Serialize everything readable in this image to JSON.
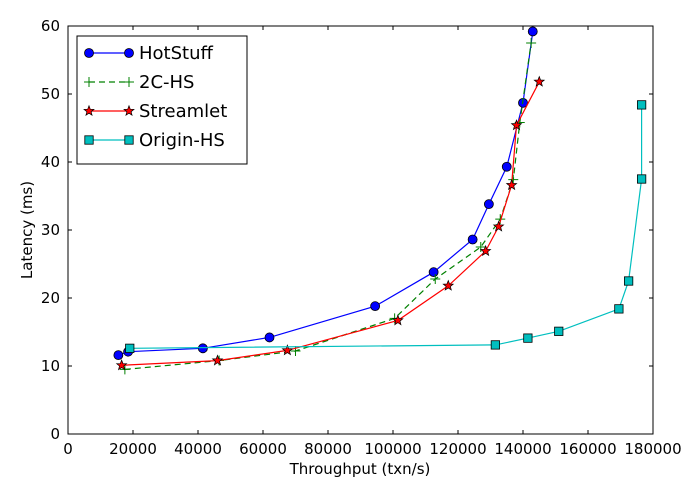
{
  "chart_data": {
    "type": "line",
    "xlabel": "Throughput (txn/s)",
    "ylabel": "Latency (ms)",
    "xlim": [
      0,
      180000
    ],
    "ylim": [
      0,
      60
    ],
    "xticks": [
      "0",
      "20000",
      "40000",
      "60000",
      "80000",
      "100000",
      "120000",
      "140000",
      "160000",
      "180000"
    ],
    "yticks": [
      "0",
      "10",
      "20",
      "30",
      "40",
      "50",
      "60"
    ],
    "grid": false,
    "legend_position": "top-left",
    "series": [
      {
        "name": "HotStuff",
        "color": "#0000ff",
        "marker": "circle",
        "line_style": "solid",
        "points": [
          [
            15500,
            11.6
          ],
          [
            18500,
            12.1
          ],
          [
            41500,
            12.6
          ],
          [
            62000,
            14.2
          ],
          [
            94500,
            18.8
          ],
          [
            112500,
            23.8
          ],
          [
            124500,
            28.6
          ],
          [
            129500,
            33.8
          ],
          [
            135000,
            39.3
          ],
          [
            140000,
            48.7
          ],
          [
            143000,
            59.2
          ]
        ]
      },
      {
        "name": "2C-HS",
        "color": "#008000",
        "marker": "plus",
        "line_style": "dashed",
        "points": [
          [
            17500,
            9.5
          ],
          [
            46500,
            10.8
          ],
          [
            70000,
            12.2
          ],
          [
            100500,
            17.0
          ],
          [
            113000,
            22.8
          ],
          [
            127000,
            27.5
          ],
          [
            133000,
            31.6
          ],
          [
            137000,
            37.4
          ],
          [
            139000,
            45.8
          ],
          [
            142500,
            57.5
          ]
        ]
      },
      {
        "name": "Streamlet",
        "color": "#ff0000",
        "marker": "star",
        "line_style": "solid",
        "points": [
          [
            16500,
            10.1
          ],
          [
            46000,
            10.8
          ],
          [
            67500,
            12.3
          ],
          [
            101500,
            16.7
          ],
          [
            117000,
            21.8
          ],
          [
            128500,
            26.9
          ],
          [
            132500,
            30.5
          ],
          [
            136500,
            36.6
          ],
          [
            138000,
            45.4
          ],
          [
            145000,
            51.8
          ]
        ]
      },
      {
        "name": "Origin-HS",
        "color": "#00bfbf",
        "marker": "square",
        "line_style": "solid",
        "points": [
          [
            19000,
            12.6
          ],
          [
            131500,
            13.1
          ],
          [
            141500,
            14.1
          ],
          [
            151000,
            15.1
          ],
          [
            169500,
            18.4
          ],
          [
            172500,
            22.5
          ],
          [
            176500,
            37.5
          ],
          [
            176500,
            48.4
          ]
        ]
      }
    ]
  }
}
